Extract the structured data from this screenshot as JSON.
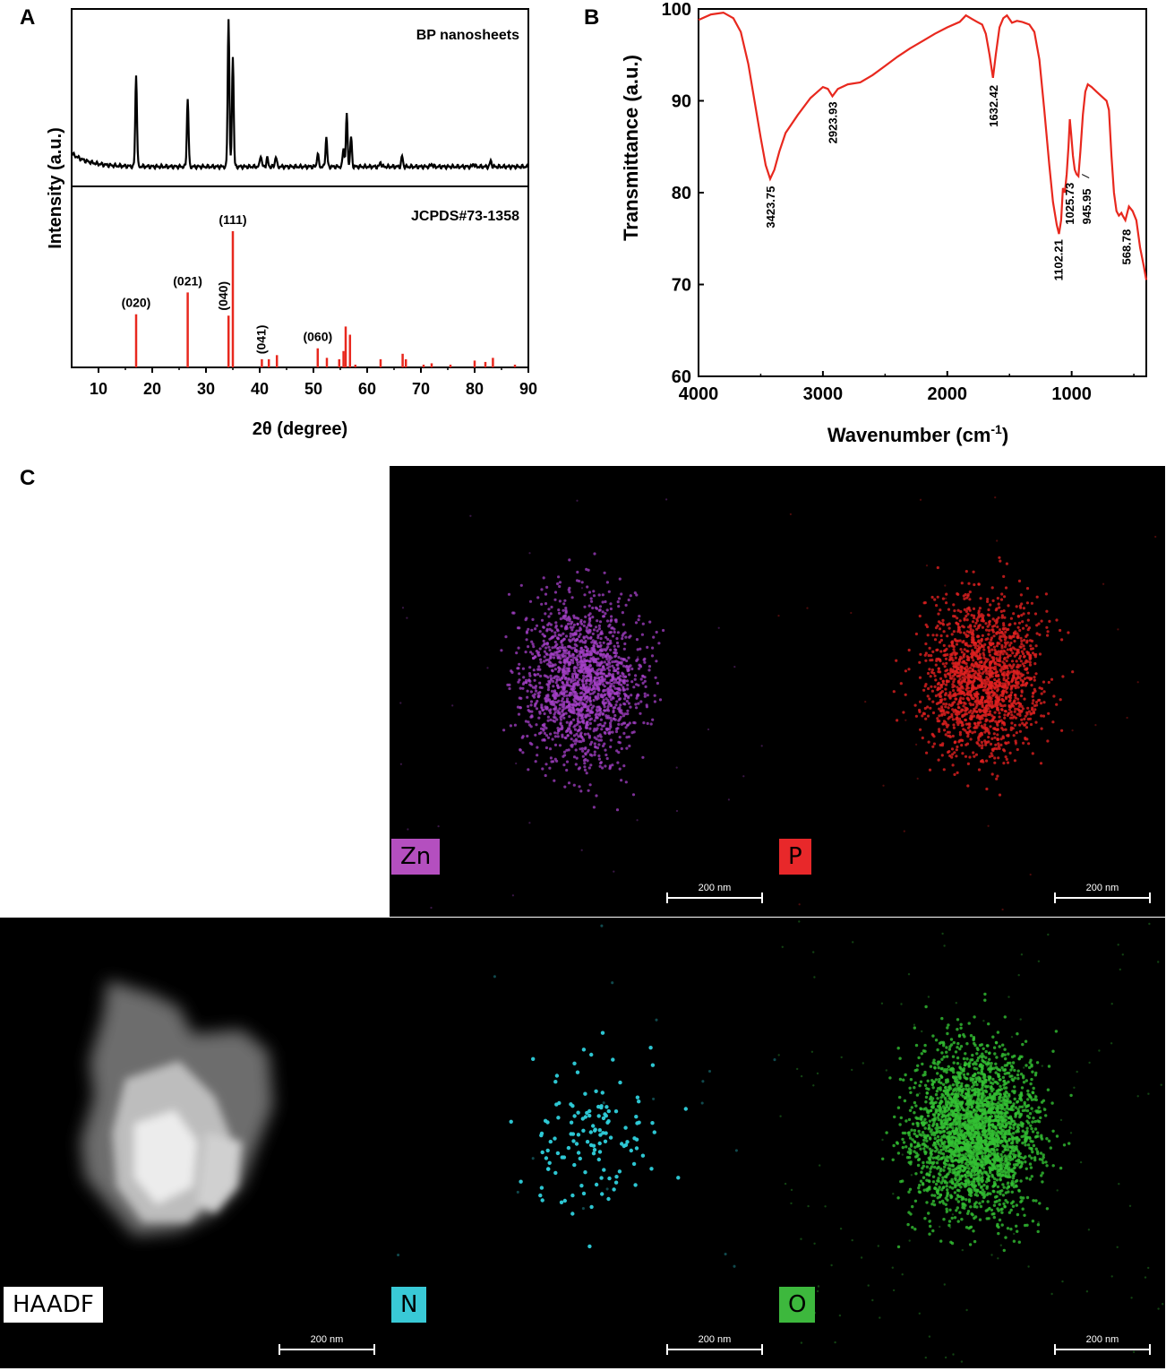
{
  "panels": {
    "a": "A",
    "b": "B",
    "c": "C"
  },
  "chart_data": [
    {
      "type": "line",
      "panel": "A",
      "xlabel": "2θ (degree)",
      "ylabel": "Intensity (a.u.)",
      "xlim": [
        5,
        90
      ],
      "xticks": [
        10,
        20,
        30,
        40,
        50,
        60,
        70,
        80,
        90
      ],
      "top_trace": {
        "label": "BP nanosheets",
        "color": "#000000",
        "baseline": 0.07,
        "peaks": [
          {
            "x": 17.0,
            "y": 0.62
          },
          {
            "x": 26.6,
            "y": 0.46
          },
          {
            "x": 34.2,
            "y": 1.0
          },
          {
            "x": 35.0,
            "y": 0.75
          },
          {
            "x": 40.2,
            "y": 0.08
          },
          {
            "x": 41.4,
            "y": 0.06
          },
          {
            "x": 43.0,
            "y": 0.07
          },
          {
            "x": 50.8,
            "y": 0.09
          },
          {
            "x": 52.4,
            "y": 0.2
          },
          {
            "x": 55.6,
            "y": 0.13
          },
          {
            "x": 56.2,
            "y": 0.35
          },
          {
            "x": 57.0,
            "y": 0.2
          },
          {
            "x": 62.5,
            "y": 0.03
          },
          {
            "x": 66.5,
            "y": 0.07
          },
          {
            "x": 72.0,
            "y": 0.02
          },
          {
            "x": 79.8,
            "y": 0.02
          },
          {
            "x": 83.0,
            "y": 0.04
          }
        ]
      },
      "bottom_reference": {
        "label": "JCPDS#73-1358",
        "color": "#e8281e",
        "lines": [
          {
            "x": 17.0,
            "y": 0.39,
            "hkl": "(020)"
          },
          {
            "x": 26.6,
            "y": 0.55,
            "hkl": "(021)"
          },
          {
            "x": 34.2,
            "y": 0.38,
            "hkl": "(040)"
          },
          {
            "x": 35.0,
            "y": 1.0,
            "hkl": "(111)"
          },
          {
            "x": 40.4,
            "y": 0.06,
            "hkl": "(041)"
          },
          {
            "x": 41.7,
            "y": 0.06
          },
          {
            "x": 43.2,
            "y": 0.09
          },
          {
            "x": 50.8,
            "y": 0.14,
            "hkl": "(060)"
          },
          {
            "x": 52.5,
            "y": 0.07
          },
          {
            "x": 54.8,
            "y": 0.06
          },
          {
            "x": 55.6,
            "y": 0.12
          },
          {
            "x": 56.0,
            "y": 0.3
          },
          {
            "x": 56.8,
            "y": 0.24
          },
          {
            "x": 57.8,
            "y": 0.02
          },
          {
            "x": 62.5,
            "y": 0.06
          },
          {
            "x": 66.6,
            "y": 0.1
          },
          {
            "x": 67.2,
            "y": 0.06
          },
          {
            "x": 70.5,
            "y": 0.02
          },
          {
            "x": 72.0,
            "y": 0.03
          },
          {
            "x": 75.5,
            "y": 0.02
          },
          {
            "x": 80.0,
            "y": 0.05
          },
          {
            "x": 82.0,
            "y": 0.04
          },
          {
            "x": 83.4,
            "y": 0.07
          },
          {
            "x": 87.5,
            "y": 0.02
          }
        ]
      }
    },
    {
      "type": "line",
      "panel": "B",
      "xlabel": "Wavenumber (cm",
      "xlabel_sup": "-1",
      "xlabel_end": ")",
      "ylabel": "Transmittance (a.u.)",
      "xlim": [
        4000,
        400
      ],
      "ylim": [
        60,
        100
      ],
      "xticks": [
        4000,
        3000,
        2000,
        1000
      ],
      "yticks": [
        60,
        70,
        80,
        90,
        100
      ],
      "color": "#e8281e",
      "points": [
        [
          4000,
          98.8
        ],
        [
          3900,
          99.4
        ],
        [
          3800,
          99.6
        ],
        [
          3720,
          99.0
        ],
        [
          3660,
          97.5
        ],
        [
          3600,
          94.0
        ],
        [
          3550,
          90.0
        ],
        [
          3500,
          86.0
        ],
        [
          3460,
          83.0
        ],
        [
          3423.75,
          81.5
        ],
        [
          3390,
          82.5
        ],
        [
          3350,
          84.5
        ],
        [
          3300,
          86.5
        ],
        [
          3200,
          88.5
        ],
        [
          3100,
          90.3
        ],
        [
          3000,
          91.5
        ],
        [
          2960,
          91.3
        ],
        [
          2923.93,
          90.5
        ],
        [
          2880,
          91.3
        ],
        [
          2800,
          91.8
        ],
        [
          2700,
          92.0
        ],
        [
          2600,
          92.8
        ],
        [
          2500,
          93.8
        ],
        [
          2400,
          94.8
        ],
        [
          2300,
          95.7
        ],
        [
          2200,
          96.5
        ],
        [
          2100,
          97.3
        ],
        [
          2000,
          98.0
        ],
        [
          1900,
          98.6
        ],
        [
          1850,
          99.3
        ],
        [
          1800,
          98.9
        ],
        [
          1760,
          98.6
        ],
        [
          1720,
          98.3
        ],
        [
          1690,
          97.3
        ],
        [
          1660,
          95.0
        ],
        [
          1632.42,
          92.5
        ],
        [
          1610,
          95.0
        ],
        [
          1580,
          98.0
        ],
        [
          1550,
          99.0
        ],
        [
          1520,
          99.3
        ],
        [
          1480,
          98.5
        ],
        [
          1440,
          98.7
        ],
        [
          1400,
          98.6
        ],
        [
          1340,
          98.3
        ],
        [
          1300,
          97.5
        ],
        [
          1260,
          94.5
        ],
        [
          1220,
          89.0
        ],
        [
          1180,
          83.0
        ],
        [
          1150,
          79.0
        ],
        [
          1120,
          76.5
        ],
        [
          1102.21,
          75.5
        ],
        [
          1085,
          77.0
        ],
        [
          1070,
          80.5
        ],
        [
          1055,
          80.0
        ],
        [
          1040,
          82.0
        ],
        [
          1025.73,
          85.0
        ],
        [
          1015,
          88.0
        ],
        [
          1005,
          86.5
        ],
        [
          990,
          84.0
        ],
        [
          975,
          82.5
        ],
        [
          960,
          82.0
        ],
        [
          945.95,
          81.8
        ],
        [
          930,
          84.5
        ],
        [
          910,
          88.5
        ],
        [
          890,
          91.0
        ],
        [
          870,
          91.8
        ],
        [
          840,
          91.5
        ],
        [
          800,
          91.0
        ],
        [
          760,
          90.5
        ],
        [
          720,
          90.0
        ],
        [
          700,
          89.0
        ],
        [
          680,
          84.0
        ],
        [
          660,
          80.0
        ],
        [
          640,
          78.0
        ],
        [
          620,
          77.5
        ],
        [
          600,
          77.8
        ],
        [
          590,
          77.5
        ],
        [
          568.78,
          77.0
        ],
        [
          540,
          78.5
        ],
        [
          510,
          78.0
        ],
        [
          480,
          77.0
        ],
        [
          450,
          74.0
        ],
        [
          420,
          72.0
        ],
        [
          400,
          70.5
        ]
      ],
      "annotations": [
        {
          "x": 3423.75,
          "label": "3423.75"
        },
        {
          "x": 2923.93,
          "label": "2923.93"
        },
        {
          "x": 1632.42,
          "label": "1632.42"
        },
        {
          "x": 1102.21,
          "label": "1102.21"
        },
        {
          "x": 1025.73,
          "label": "1025.73"
        },
        {
          "x": 945.95,
          "label": "945.95"
        },
        {
          "x": 568.78,
          "label": "568.78"
        }
      ]
    }
  ],
  "maps": {
    "scale_label": "200 nm",
    "tiles": [
      {
        "label": "Zn",
        "tag_bg": "#b44fbf",
        "tag_fg": "#000000",
        "dot_color": "#a640c8"
      },
      {
        "label": "P",
        "tag_bg": "#e8282a",
        "tag_fg": "#000000",
        "dot_color": "#e02020"
      },
      {
        "label": "HAADF",
        "tag_bg": "#ffffff",
        "tag_fg": "#000000"
      },
      {
        "label": "N",
        "tag_bg": "#39c9d6",
        "tag_fg": "#000000",
        "dot_color": "#2fd0dc"
      },
      {
        "label": "O",
        "tag_bg": "#3db83d",
        "tag_fg": "#000000",
        "dot_color": "#33c033"
      }
    ]
  }
}
